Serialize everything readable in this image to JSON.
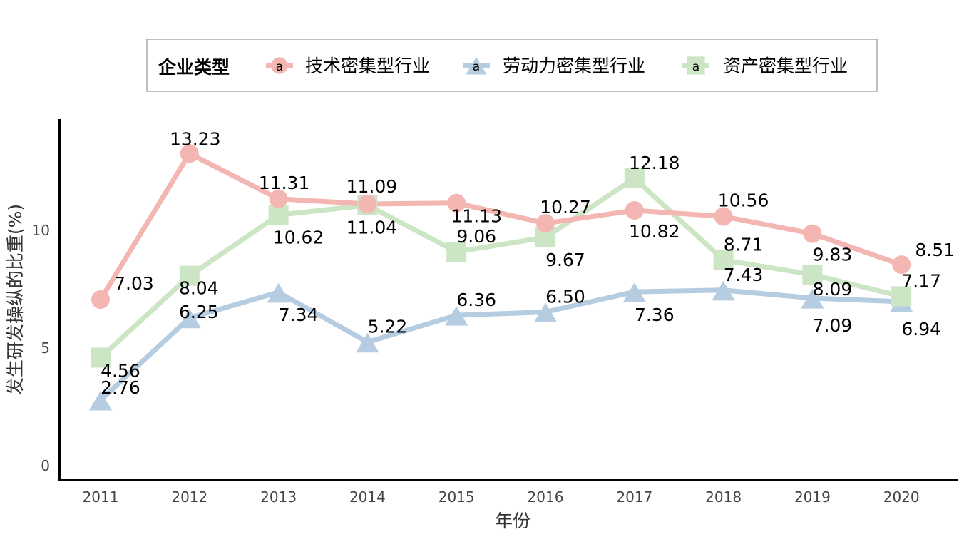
{
  "chart_data": {
    "type": "line",
    "xlabel": "年份",
    "ylabel": "发生研发操纵的比重(%)",
    "categories": [
      "2011",
      "2012",
      "2013",
      "2014",
      "2015",
      "2016",
      "2017",
      "2018",
      "2019",
      "2020"
    ],
    "ylim": [
      0,
      14
    ],
    "yticks": [
      0,
      5,
      10
    ],
    "grid": false,
    "legend": {
      "title": "企业类型",
      "placement": "top",
      "key_glyph": "a"
    },
    "series": [
      {
        "name": "技术密集型行业",
        "color": "#f4b6b2",
        "marker": "circle",
        "values": [
          7.03,
          13.23,
          11.31,
          11.09,
          11.13,
          10.27,
          10.82,
          10.56,
          9.83,
          8.51
        ],
        "labels": [
          "7.03",
          "13.23",
          "11.31",
          "11.09",
          "11.13",
          "10.27",
          "10.82",
          "10.56",
          "9.83",
          "8.51"
        ]
      },
      {
        "name": "劳动力密集型行业",
        "color": "#b6cde1",
        "marker": "triangle",
        "values": [
          2.76,
          6.25,
          7.34,
          5.22,
          6.36,
          6.5,
          7.36,
          7.43,
          7.09,
          6.94
        ],
        "labels": [
          "2.76",
          "6.25",
          "7.34",
          "5.22",
          "6.36",
          "6.50",
          "7.36",
          "7.43",
          "7.09",
          "6.94"
        ]
      },
      {
        "name": "资产密集型行业",
        "color": "#cce5c4",
        "marker": "square",
        "values": [
          4.56,
          8.04,
          10.62,
          11.04,
          9.06,
          9.67,
          12.18,
          8.71,
          8.09,
          7.17
        ],
        "labels": [
          "4.56",
          "8.04",
          "10.62",
          "11.04",
          "9.06",
          "9.67",
          "12.18",
          "8.71",
          "8.09",
          "7.17"
        ]
      }
    ]
  }
}
